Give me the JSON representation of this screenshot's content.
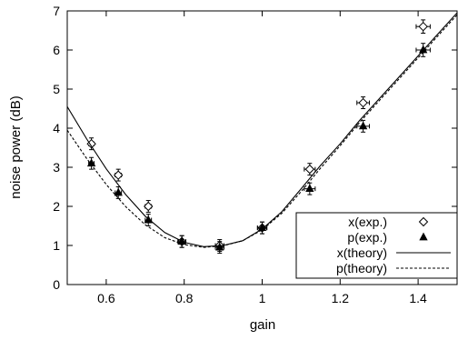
{
  "chart_data": {
    "type": "scatter",
    "title": "",
    "xlabel": "gain",
    "ylabel": "noise power (dB)",
    "xlim": [
      0.5,
      1.5
    ],
    "ylim": [
      0,
      7
    ],
    "xticks": [
      0.6,
      0.8,
      1,
      1.2,
      1.4
    ],
    "xtick_labels": [
      "0.6",
      "0.8",
      "1",
      "1.2",
      "1.4"
    ],
    "yticks": [
      0,
      1,
      2,
      3,
      4,
      5,
      6,
      7
    ],
    "ytick_labels": [
      "0",
      "1",
      "2",
      "3",
      "4",
      "5",
      "6",
      "7"
    ],
    "grid": false,
    "legend_position": "bottom-right",
    "series": [
      {
        "name": "x(exp.)",
        "kind": "points",
        "marker": "diamond-open",
        "x": [
          0.562,
          0.631,
          0.708,
          0.794,
          0.891,
          1.0,
          1.122,
          1.259,
          1.413
        ],
        "y": [
          3.6,
          2.8,
          2.0,
          1.1,
          1.0,
          1.45,
          2.95,
          4.65,
          6.6
        ],
        "xerr": [
          0.007,
          0.008,
          0.008,
          0.01,
          0.011,
          0.012,
          0.014,
          0.016,
          0.018
        ],
        "yerr": [
          0.15,
          0.15,
          0.15,
          0.15,
          0.15,
          0.15,
          0.15,
          0.15,
          0.17
        ]
      },
      {
        "name": "p(exp.)",
        "kind": "points",
        "marker": "triangle-filled",
        "x": [
          0.562,
          0.631,
          0.708,
          0.794,
          0.891,
          1.0,
          1.122,
          1.259,
          1.413
        ],
        "y": [
          3.1,
          2.35,
          1.65,
          1.1,
          0.95,
          1.45,
          2.45,
          4.05,
          6.0
        ],
        "xerr": [
          0.007,
          0.008,
          0.008,
          0.01,
          0.011,
          0.012,
          0.014,
          0.016,
          0.018
        ],
        "yerr": [
          0.15,
          0.15,
          0.15,
          0.15,
          0.15,
          0.15,
          0.15,
          0.15,
          0.17
        ]
      },
      {
        "name": "x(theory)",
        "kind": "line",
        "dash": "solid",
        "x": [
          0.5,
          0.55,
          0.6,
          0.65,
          0.7,
          0.75,
          0.8,
          0.85,
          0.9,
          0.95,
          1.0,
          1.05,
          1.1,
          1.15,
          1.2,
          1.25,
          1.3,
          1.35,
          1.4,
          1.45,
          1.5
        ],
        "y": [
          4.55,
          3.72,
          2.96,
          2.3,
          1.75,
          1.33,
          1.08,
          0.97,
          1.0,
          1.12,
          1.42,
          1.86,
          2.45,
          3.05,
          3.6,
          4.2,
          4.75,
          5.3,
          5.85,
          6.4,
          6.95
        ]
      },
      {
        "name": "p(theory)",
        "kind": "line",
        "dash": "dashed",
        "x": [
          0.5,
          0.55,
          0.6,
          0.65,
          0.7,
          0.75,
          0.8,
          0.85,
          0.9,
          0.95,
          1.0,
          1.05,
          1.1,
          1.15,
          1.2,
          1.25,
          1.3,
          1.35,
          1.4,
          1.45,
          1.5
        ],
        "y": [
          3.95,
          3.22,
          2.56,
          1.99,
          1.53,
          1.2,
          1.02,
          0.95,
          0.99,
          1.12,
          1.4,
          1.82,
          2.38,
          2.98,
          3.55,
          4.15,
          4.7,
          5.25,
          5.8,
          6.35,
          6.9
        ]
      }
    ]
  }
}
